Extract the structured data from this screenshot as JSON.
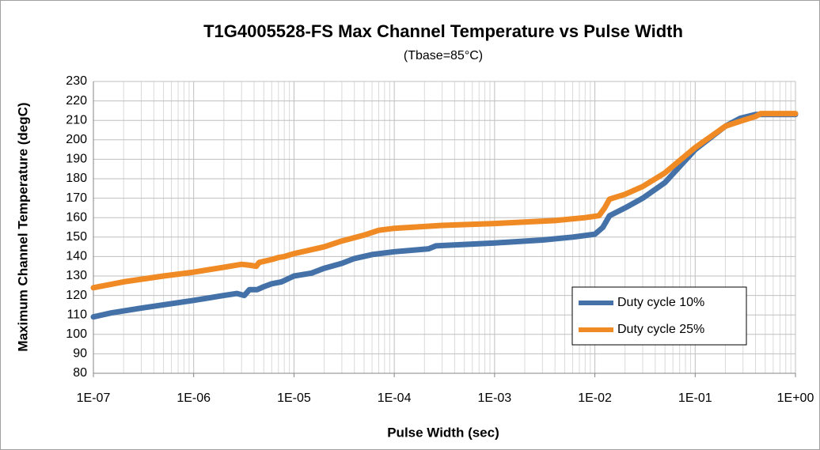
{
  "chart_data": {
    "type": "line",
    "title": "T1G4005528-FS Max Channel Temperature vs Pulse Width",
    "subtitle": "(Tbase=85°C)",
    "x_label": "Pulse Width (sec)",
    "y_label": "Maximum Channel Temperature (degC)",
    "x_scale": "log",
    "grid": true,
    "legend": "lower right",
    "xlim": [
      1e-07,
      1
    ],
    "xticks": [
      {
        "value": 1e-07,
        "label": "1E-07"
      },
      {
        "value": 1e-06,
        "label": "1E-06"
      },
      {
        "value": 1e-05,
        "label": "1E-05"
      },
      {
        "value": 0.0001,
        "label": "1E-04"
      },
      {
        "value": 0.001,
        "label": "1E-03"
      },
      {
        "value": 0.01,
        "label": "1E-02"
      },
      {
        "value": 0.1,
        "label": "1E-01"
      },
      {
        "value": 1,
        "label": "1E+00"
      }
    ],
    "ylim": [
      80,
      230
    ],
    "yticks": [
      80,
      90,
      100,
      110,
      120,
      130,
      140,
      150,
      160,
      170,
      180,
      190,
      200,
      210,
      220,
      230
    ],
    "series": [
      {
        "name": "Duty cycle 10%",
        "color": "#4472a8",
        "x": [
          1e-07,
          1.5e-07,
          3e-07,
          1e-06,
          2e-06,
          2.7e-06,
          3.2e-06,
          3.6e-06,
          4.3e-06,
          5e-06,
          6e-06,
          7.5e-06,
          1e-05,
          1.5e-05,
          2e-05,
          3e-05,
          4e-05,
          6e-05,
          0.0001,
          0.00022,
          0.00026,
          0.001,
          0.003,
          0.006,
          0.01,
          0.012,
          0.014,
          0.02,
          0.03,
          0.05,
          0.1,
          0.2,
          0.28,
          0.4,
          1
        ],
        "values": [
          109,
          111,
          113.5,
          117.5,
          120,
          121,
          120,
          123,
          123,
          124.5,
          126,
          127,
          130,
          131.5,
          134,
          136.5,
          139,
          141,
          142.5,
          144,
          145.5,
          147,
          148.5,
          150,
          151.5,
          155,
          161,
          165,
          170,
          178,
          195,
          207,
          211,
          213,
          213
        ]
      },
      {
        "name": "Duty cycle 25%",
        "color": "#f08a24",
        "x": [
          1e-07,
          2e-07,
          5e-07,
          1e-06,
          2e-06,
          3e-06,
          3.7e-06,
          4.2e-06,
          4.5e-06,
          6e-06,
          7e-06,
          8e-06,
          1e-05,
          2e-05,
          3e-05,
          5e-05,
          7e-05,
          0.0001,
          0.0003,
          0.001,
          0.004,
          0.008,
          0.011,
          0.0125,
          0.014,
          0.02,
          0.03,
          0.05,
          0.1,
          0.2,
          0.3,
          0.4,
          0.45,
          1
        ],
        "values": [
          124,
          127,
          130,
          132,
          134.5,
          136,
          135.5,
          135,
          137,
          138.5,
          139.5,
          140,
          141.5,
          145,
          148,
          151,
          153.5,
          154.5,
          156,
          157,
          158.5,
          160,
          161,
          165,
          169.5,
          172,
          176,
          183,
          196,
          207,
          210,
          212,
          213.5,
          213.5
        ]
      }
    ]
  }
}
